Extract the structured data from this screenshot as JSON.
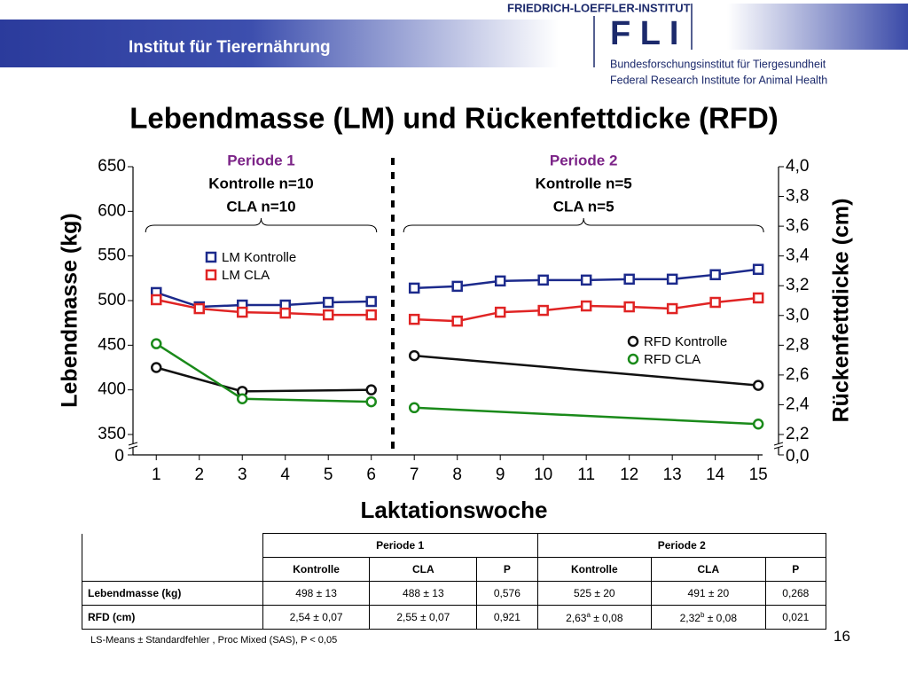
{
  "header": {
    "institute": "Institut für Tierernährung",
    "logo_name": "FRIEDRICH-LOEFFLER-INSTITUT",
    "logo_mark": "F L I",
    "logo_line_de": "Bundesforschungsinstitut für Tiergesundheit",
    "logo_line_en": "Federal Research Institute for Animal Health"
  },
  "chart_data": {
    "type": "line",
    "title": "Lebendmasse (LM) und Rückenfettdicke (RFD)",
    "x_label": "Laktationswoche",
    "y_label": "Lebendmasse (kg)",
    "y2_label": "Rückenfettdicke (cm)",
    "xlim": [
      0.5,
      15.1
    ],
    "xticks": [
      1,
      2,
      3,
      4,
      5,
      6,
      7,
      8,
      9,
      10,
      11,
      12,
      13,
      14,
      15
    ],
    "ylim": [
      350,
      650
    ],
    "yticks": [
      350,
      400,
      450,
      500,
      550,
      600,
      650
    ],
    "y_origin": 0,
    "y2lim": [
      2.2,
      4.0
    ],
    "y2ticks": [
      {
        "value": 2.2,
        "label": "2,2"
      },
      {
        "value": 2.4,
        "label": "2,4"
      },
      {
        "value": 2.6,
        "label": "2,6"
      },
      {
        "value": 2.8,
        "label": "2,8"
      },
      {
        "value": 3.0,
        "label": "3,0"
      },
      {
        "value": 3.2,
        "label": "3,2"
      },
      {
        "value": 3.4,
        "label": "3,4"
      },
      {
        "value": 3.6,
        "label": "3,6"
      },
      {
        "value": 3.8,
        "label": "3,8"
      },
      {
        "value": 4.0,
        "label": "4,0"
      }
    ],
    "y2_origin": {
      "value": 0,
      "label": "0,0"
    },
    "periods": [
      {
        "label": "Periode 1",
        "lines": [
          "Kontrolle n=10",
          "CLA n=10"
        ],
        "x": [
          1,
          6
        ]
      },
      {
        "label": "Periode 2",
        "lines": [
          "Kontrolle n=5",
          "CLA n=5"
        ],
        "x": [
          7,
          15
        ]
      }
    ],
    "series": [
      {
        "name": "LM Kontrolle",
        "color": "#1c2a8c",
        "marker": "square",
        "x": [
          1,
          2,
          3,
          4,
          5,
          6,
          7,
          8,
          9,
          10,
          11,
          12,
          13,
          14,
          15
        ],
        "values": [
          509,
          493,
          495,
          495,
          498,
          499,
          514,
          516,
          522,
          523,
          523,
          524,
          524,
          529,
          535
        ]
      },
      {
        "name": "LM CLA",
        "color": "#e02424",
        "marker": "square",
        "x": [
          1,
          2,
          3,
          4,
          5,
          6,
          7,
          8,
          9,
          10,
          11,
          12,
          13,
          14,
          15
        ],
        "values": [
          501,
          491,
          487,
          486,
          484,
          484,
          479,
          477,
          487,
          489,
          494,
          493,
          491,
          498,
          503
        ]
      },
      {
        "name": "RFD Kontrolle",
        "color": "#111111",
        "marker": "circle",
        "axis": "y2",
        "x": [
          1,
          3,
          6,
          7,
          15
        ],
        "values": [
          2.65,
          2.49,
          2.5,
          2.73,
          2.53
        ]
      },
      {
        "name": "RFD CLA",
        "color": "#1a8a1a",
        "marker": "circle",
        "axis": "y2",
        "x": [
          1,
          3,
          6,
          7,
          15
        ],
        "values": [
          2.81,
          2.44,
          2.42,
          2.38,
          2.27
        ]
      }
    ]
  },
  "table": {
    "periods": [
      "Periode 1",
      "Periode 2"
    ],
    "columns": [
      "Kontrolle",
      "CLA",
      "P",
      "Kontrolle",
      "CLA",
      "P"
    ],
    "rows": [
      [
        "Lebendmasse (kg)",
        "498 ± 13",
        "488 ± 13",
        "0,576",
        "525 ± 20",
        "491 ± 20",
        "0,268"
      ],
      [
        "RFD (cm)",
        "2,54 ± 0,07",
        "2,55 ± 0,07",
        "0,921",
        {
          "text": "2,63",
          "sup": "a",
          "rest": " ± 0,08"
        },
        {
          "text": "2,32",
          "sup": "b",
          "rest": " ± 0,08"
        },
        "0,021"
      ]
    ]
  },
  "footnote": "LS-Means ± Standardfehler , Proc Mixed  (SAS),  P < 0,05",
  "page_number": "16"
}
